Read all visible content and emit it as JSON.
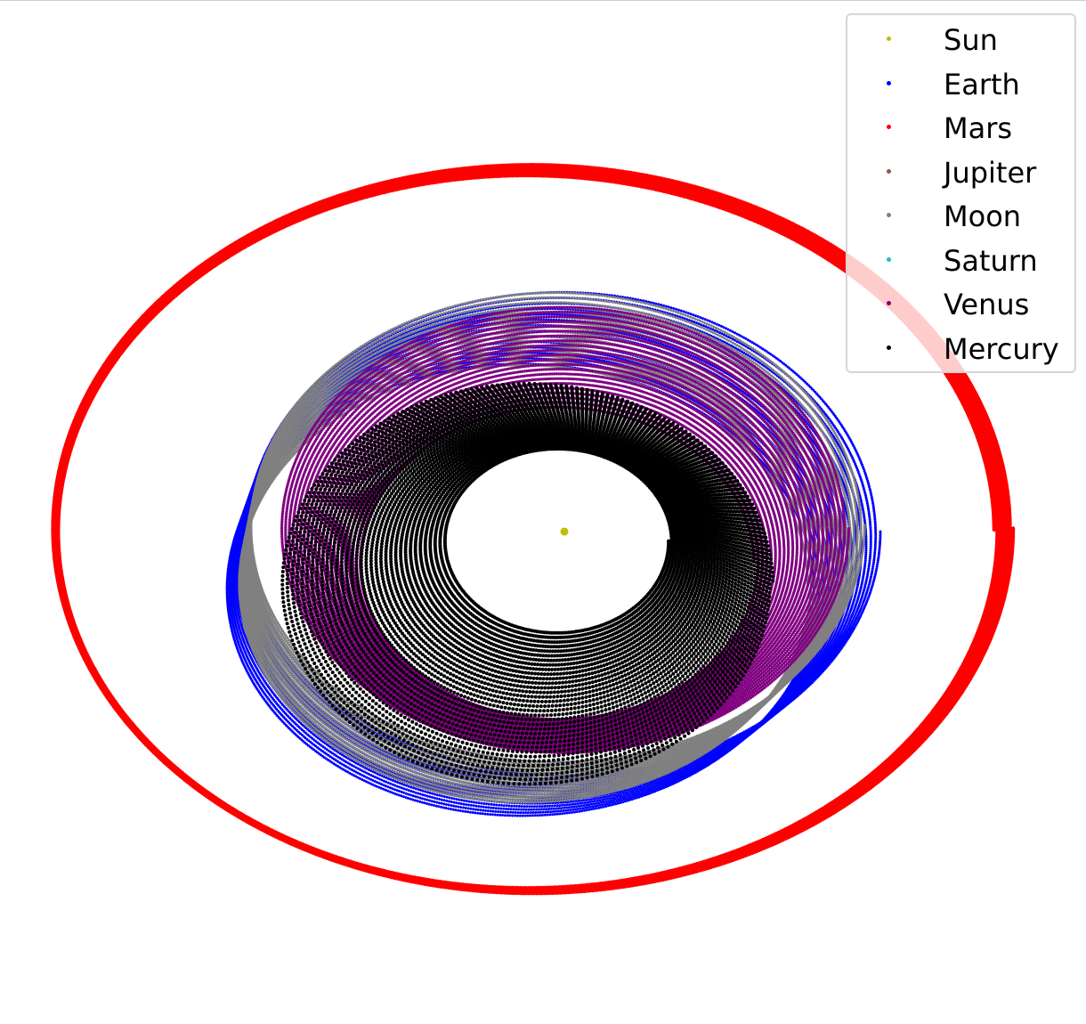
{
  "chart_data": {
    "type": "scatter",
    "title": "",
    "xlabel": "",
    "ylabel": "",
    "grid": false,
    "axes_visible": false,
    "legend_position": "top-right",
    "series": [
      {
        "name": "Sun",
        "color": "#bfbf00",
        "orbit": null,
        "center": [
          0,
          0
        ]
      },
      {
        "name": "Earth",
        "color": "#0000ff",
        "orbit": {
          "r_start": 1.0,
          "r_end": 0.93,
          "aspect": 0.77,
          "shift_x": [
            0.0,
            -0.14
          ],
          "shift_y": [
            0.0,
            0.19
          ],
          "turns": 14
        }
      },
      {
        "name": "Mars",
        "color": "#ff0000",
        "orbit": {
          "r_start": 1.52,
          "r_end": 1.48,
          "aspect": 0.76,
          "shift_x": [
            -0.1,
            -0.12
          ],
          "shift_y": [
            -0.01,
            0.0
          ],
          "turns": 6
        }
      },
      {
        "name": "Jupiter",
        "color": "#8c564b",
        "orbit": null
      },
      {
        "name": "Moon",
        "color": "#808080",
        "orbit": {
          "r_start": 0.97,
          "r_end": 0.9,
          "aspect": 0.77,
          "shift_x": [
            -0.02,
            -0.13
          ],
          "shift_y": [
            -0.02,
            0.17
          ],
          "turns": 16
        }
      },
      {
        "name": "Saturn",
        "color": "#17becf",
        "orbit": null
      },
      {
        "name": "Venus",
        "color": "#800080",
        "orbit": {
          "r_start": 0.9,
          "r_end": 0.62,
          "aspect": 0.79,
          "shift_x": [
            0.0,
            -0.02
          ],
          "shift_y": [
            -0.01,
            0.1
          ],
          "turns": 22
        }
      },
      {
        "name": "Mercury",
        "color": "#000000",
        "orbit": {
          "r_start": 0.35,
          "r_end": 0.78,
          "aspect": 0.82,
          "shift_x": [
            -0.02,
            -0.12
          ],
          "shift_y": [
            0.03,
            0.17
          ],
          "turns": 34
        }
      }
    ]
  }
}
